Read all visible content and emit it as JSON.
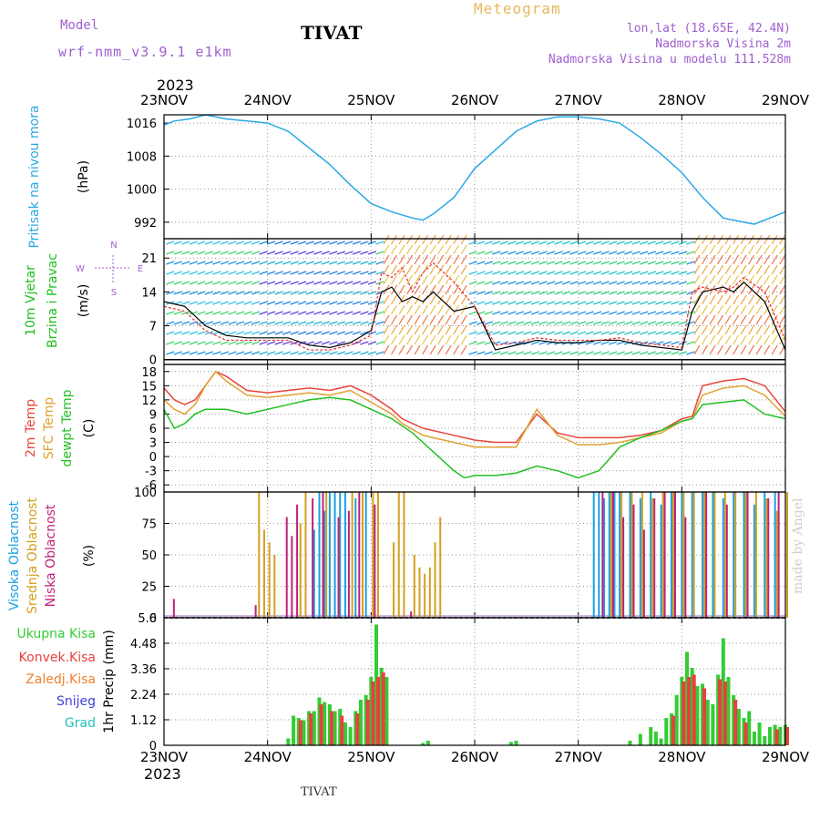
{
  "header": {
    "model_label": "Model",
    "model_name": "wrf-nmm_v3.9.1 e1km",
    "station": "TIVAT",
    "title": "Meteogram",
    "coords": "lon,lat (18.65E, 42.4N)",
    "elevation": "Nadmorska Visina 2m",
    "model_elevation": "Nadmorska Visina u modelu 111.528m",
    "year": "2023"
  },
  "footer": {
    "station": "TIVAT",
    "year": "2023",
    "credit": "made by Angel"
  },
  "colors": {
    "pressure": "#29a8e6",
    "wind_label": "#1fbf1f",
    "temp2m": "#e8453c",
    "sfctemp": "#e0a030",
    "dewpt": "#22c022",
    "cloud_high": "#1aa0e0",
    "cloud_mid": "#d4a020",
    "cloud_low": "#c0207a",
    "total_precip": "#33cc33",
    "conv_precip": "#e84040",
    "freezing": "#f08030",
    "snow": "#4040e0",
    "hail": "#20c0c0",
    "purple_text": "#a05fd0"
  },
  "chart_data": [
    {
      "type": "line",
      "id": "pressure",
      "ylabel": "Pritisak na nivou mora",
      "unit": "(hPa)",
      "x_ticks": [
        "23NOV",
        "24NOV",
        "25NOV",
        "26NOV",
        "27NOV",
        "28NOV",
        "29NOV"
      ],
      "y_ticks": [
        992,
        1000,
        1008,
        1016
      ],
      "ylim": [
        988,
        1018
      ],
      "grid": true,
      "x": [
        0,
        0.1,
        0.25,
        0.4,
        0.6,
        0.8,
        1,
        1.2,
        1.4,
        1.6,
        1.8,
        2,
        2.2,
        2.4,
        2.5,
        2.6,
        2.8,
        3,
        3.2,
        3.4,
        3.6,
        3.8,
        4,
        4.2,
        4.4,
        4.6,
        4.8,
        5,
        5.2,
        5.4,
        5.6,
        5.7,
        5.8,
        6
      ],
      "values": [
        1015.5,
        1016.5,
        1017,
        1018,
        1017,
        1016.5,
        1016,
        1014,
        1010,
        1006,
        1001,
        996.5,
        994.5,
        993,
        992.5,
        994,
        998,
        1005,
        1009.5,
        1014,
        1016.5,
        1017.5,
        1017.5,
        1017,
        1016,
        1012.5,
        1008.5,
        1004,
        998,
        993,
        992,
        991.5,
        992.5,
        994.5
      ]
    },
    {
      "type": "line",
      "id": "wind",
      "ylabel": [
        "10m Vjetar",
        "Brzina i Pravac"
      ],
      "unit": "(m/s)",
      "compass": "N, E, S, W",
      "y_ticks": [
        0,
        7,
        14,
        21
      ],
      "ylim": [
        -1,
        25
      ],
      "grid": true,
      "series": [
        {
          "name": "wind speed",
          "x": [
            0,
            0.2,
            0.4,
            0.6,
            0.8,
            1,
            1.2,
            1.4,
            1.6,
            1.8,
            2,
            2.1,
            2.2,
            2.3,
            2.4,
            2.5,
            2.6,
            2.8,
            3,
            3.2,
            3.4,
            3.6,
            3.8,
            4,
            4.2,
            4.4,
            4.6,
            4.8,
            5,
            5.1,
            5.2,
            5.4,
            5.5,
            5.6,
            5.8,
            6
          ],
          "values": [
            12,
            11,
            7,
            5,
            4.5,
            4.5,
            4.5,
            3,
            2.5,
            3.5,
            6,
            14,
            15,
            12,
            13,
            12,
            14,
            10,
            11,
            2,
            3,
            4,
            3.5,
            3.5,
            4,
            4,
            3,
            2.5,
            2,
            10,
            14,
            15,
            14,
            16,
            12,
            2
          ]
        },
        {
          "name": "gust",
          "x": [
            0,
            0.2,
            0.4,
            0.6,
            0.8,
            1,
            1.2,
            1.4,
            1.6,
            1.8,
            2,
            2.1,
            2.2,
            2.3,
            2.4,
            2.5,
            2.6,
            2.8,
            3,
            3.2,
            3.4,
            3.6,
            3.8,
            4,
            4.2,
            4.4,
            4.6,
            4.8,
            5,
            5.1,
            5.2,
            5.4,
            5.5,
            5.6,
            5.8,
            6
          ],
          "values": [
            11,
            10,
            6,
            4,
            4,
            4,
            4,
            2,
            2,
            3,
            5,
            18,
            17,
            19,
            14,
            18,
            20,
            16,
            11,
            3,
            3.5,
            4.5,
            4,
            4,
            4,
            4.5,
            3.5,
            3,
            2.5,
            14,
            15,
            14,
            15,
            17,
            14,
            4
          ]
        }
      ]
    },
    {
      "type": "line",
      "id": "temperature",
      "ylabel": [
        "2m Temp",
        "SFC Temp",
        "dewpt Temp"
      ],
      "unit": "(C)",
      "y_ticks": [
        -6,
        -3,
        0,
        3,
        6,
        9,
        12,
        15,
        18
      ],
      "ylim": [
        -7.5,
        19.5
      ],
      "grid": true,
      "series": [
        {
          "name": "2m Temp",
          "x": [
            0,
            0.1,
            0.2,
            0.3,
            0.4,
            0.5,
            0.6,
            0.8,
            1,
            1.2,
            1.4,
            1.6,
            1.8,
            2,
            2.2,
            2.3,
            2.5,
            2.7,
            2.9,
            3,
            3.2,
            3.4,
            3.6,
            3.8,
            4,
            4.2,
            4.4,
            4.6,
            4.8,
            5,
            5.1,
            5.2,
            5.4,
            5.6,
            5.8,
            6
          ],
          "values": [
            14.5,
            12,
            11,
            12,
            15,
            18,
            17,
            14,
            13.5,
            14,
            14.5,
            14,
            15,
            13,
            10,
            8,
            6,
            5,
            4,
            3.5,
            3,
            3,
            9,
            5,
            4,
            4,
            4,
            4.5,
            5.5,
            8,
            8.5,
            15,
            16,
            16.5,
            15,
            9.5
          ]
        },
        {
          "name": "SFC Temp",
          "x": [
            0,
            0.1,
            0.2,
            0.3,
            0.4,
            0.5,
            0.6,
            0.8,
            1,
            1.2,
            1.4,
            1.6,
            1.8,
            2,
            2.2,
            2.3,
            2.5,
            2.7,
            2.9,
            3,
            3.2,
            3.4,
            3.6,
            3.8,
            4,
            4.2,
            4.4,
            4.6,
            4.8,
            5,
            5.1,
            5.2,
            5.4,
            5.6,
            5.8,
            6
          ],
          "values": [
            12,
            10,
            9,
            11,
            15,
            18,
            16,
            13,
            12.5,
            13,
            13.5,
            13,
            14,
            11.5,
            9,
            7,
            4.5,
            3.5,
            2.5,
            2,
            2,
            2,
            10,
            4.5,
            2.5,
            2.5,
            3,
            4,
            5,
            7.5,
            8,
            13,
            14.5,
            15,
            13,
            8.5
          ]
        },
        {
          "name": "dewpt Temp",
          "x": [
            0,
            0.1,
            0.2,
            0.3,
            0.4,
            0.6,
            0.8,
            1,
            1.2,
            1.4,
            1.6,
            1.8,
            2,
            2.1,
            2.2,
            2.4,
            2.6,
            2.8,
            2.9,
            3,
            3.2,
            3.4,
            3.6,
            3.8,
            4,
            4.2,
            4.4,
            4.6,
            4.8,
            5,
            5.1,
            5.2,
            5.4,
            5.6,
            5.8,
            6
          ],
          "values": [
            10,
            6,
            7,
            9,
            10,
            10,
            9,
            10,
            11,
            12,
            12.5,
            12,
            10,
            9,
            8,
            5,
            1,
            -3,
            -4.5,
            -4,
            -4,
            -3.5,
            -2,
            -3,
            -4.5,
            -3,
            2,
            4,
            5.5,
            7.5,
            8,
            11,
            11.5,
            12,
            9,
            8
          ]
        }
      ]
    },
    {
      "type": "bar",
      "id": "clouds",
      "ylabel": [
        "Visoka Oblacnost",
        "Srednja Oblacnost",
        "Niska Oblacnost"
      ],
      "unit": "(%)",
      "y_ticks": [
        0,
        25,
        50,
        75,
        100
      ],
      "ylim": [
        0,
        100
      ],
      "grid": true,
      "series": [
        {
          "name": "Visoka Oblacnost",
          "x": [
            1.45,
            1.5,
            1.55,
            1.6,
            1.65,
            1.7,
            1.75,
            1.85,
            1.95,
            4.15,
            4.2,
            4.25,
            4.3,
            4.35,
            4.4,
            4.5,
            4.6,
            4.7,
            4.8,
            4.9,
            5,
            5.1,
            5.2,
            5.3,
            5.4,
            5.5,
            5.6,
            5.7,
            5.8,
            5.9
          ],
          "values": [
            70,
            100,
            85,
            100,
            100,
            100,
            100,
            95,
            100,
            100,
            100,
            95,
            100,
            100,
            100,
            100,
            95,
            100,
            90,
            100,
            100,
            100,
            100,
            100,
            95,
            100,
            100,
            90,
            100,
            100
          ]
        },
        {
          "name": "Srednja Oblacnost",
          "x": [
            0.9,
            0.95,
            1.0,
            1.05,
            1.3,
            1.35,
            1.55,
            1.8,
            1.9,
            2.0,
            2.05,
            2.2,
            2.25,
            2.3,
            2.4,
            2.45,
            2.5,
            2.55,
            2.6,
            2.65,
            4.3,
            4.4,
            4.5,
            4.6,
            4.7,
            4.8,
            4.9,
            5.0,
            5.1,
            5.2,
            5.3,
            5.4,
            5.5,
            5.6,
            5.7,
            5.8,
            5.9,
            6.0
          ],
          "values": [
            100,
            70,
            60,
            50,
            75,
            100,
            100,
            100,
            100,
            100,
            100,
            60,
            100,
            100,
            50,
            40,
            35,
            40,
            60,
            80,
            100,
            100,
            100,
            100,
            95,
            100,
            100,
            100,
            100,
            100,
            100,
            100,
            100,
            100,
            100,
            95,
            85,
            100
          ]
        },
        {
          "name": "Niska Oblacnost",
          "x": [
            0.06,
            0.85,
            1.15,
            1.2,
            1.25,
            1.4,
            1.5,
            1.65,
            1.75,
            1.85,
            2.0,
            2.35,
            4.2,
            4.3,
            4.4,
            4.5,
            4.6,
            4.7,
            4.8,
            4.9,
            5.0,
            5.2,
            5.4,
            5.6,
            5.8,
            5.9
          ],
          "values": [
            15,
            10,
            80,
            65,
            90,
            95,
            100,
            80,
            85,
            100,
            90,
            5,
            100,
            100,
            80,
            90,
            70,
            95,
            100,
            100,
            80,
            100,
            90,
            100,
            95,
            100
          ]
        }
      ]
    },
    {
      "type": "bar",
      "id": "precipitation",
      "ylabel": "1hr Precip",
      "unit": "(mm)",
      "legend": [
        "Ukupna Kisa",
        "Konvek.Kisa",
        "Zaledj.Kisa",
        "Snijeg",
        "Grad"
      ],
      "y_ticks": [
        0,
        1.12,
        2.24,
        3.36,
        4.48,
        5.6
      ],
      "ylim": [
        0,
        5.6
      ],
      "grid": true,
      "x_ticks": [
        "23NOV",
        "24NOV",
        "25NOV",
        "26NOV",
        "27NOV",
        "28NOV",
        "29NOV"
      ],
      "series": [
        {
          "name": "Ukupna Kisa",
          "x": [
            1.2,
            1.25,
            1.3,
            1.35,
            1.4,
            1.45,
            1.5,
            1.55,
            1.6,
            1.65,
            1.7,
            1.75,
            1.8,
            1.85,
            1.9,
            1.95,
            2.0,
            2.05,
            2.1,
            2.15,
            2.5,
            2.55,
            3.35,
            3.4,
            4.5,
            4.6,
            4.7,
            4.75,
            4.8,
            4.85,
            4.9,
            4.95,
            5.0,
            5.05,
            5.1,
            5.15,
            5.2,
            5.25,
            5.3,
            5.35,
            5.4,
            5.45,
            5.5,
            5.55,
            5.6,
            5.65,
            5.7,
            5.75,
            5.8,
            5.85,
            5.9,
            5.95,
            6.0
          ],
          "values": [
            0.3,
            1.3,
            1.2,
            1.1,
            1.5,
            1.5,
            2.1,
            1.9,
            1.8,
            1.5,
            1.6,
            1.0,
            0.8,
            1.5,
            2.0,
            2.2,
            3.0,
            5.3,
            3.4,
            3.0,
            0.1,
            0.2,
            0.15,
            0.2,
            0.2,
            0.5,
            0.8,
            0.6,
            0.3,
            1.2,
            1.4,
            2.2,
            3.0,
            4.1,
            3.4,
            2.6,
            2.7,
            2.0,
            1.8,
            3.1,
            4.7,
            3.0,
            2.2,
            1.6,
            1.2,
            1.5,
            0.6,
            1.0,
            0.4,
            0.8,
            0.9,
            0.8,
            0.9
          ]
        },
        {
          "name": "Konvek.Kisa",
          "x": [
            1.3,
            1.4,
            1.5,
            1.6,
            1.7,
            1.85,
            1.95,
            2.0,
            2.05,
            2.1,
            4.9,
            5.0,
            5.05,
            5.1,
            5.2,
            5.35,
            5.4,
            5.5,
            5.6,
            5.9,
            6.0
          ],
          "values": [
            1.1,
            1.4,
            1.8,
            1.5,
            1.3,
            1.4,
            2.0,
            2.8,
            3.0,
            3.2,
            1.3,
            2.8,
            3.0,
            3.1,
            2.5,
            2.9,
            2.8,
            2.0,
            1.0,
            0.7,
            0.8
          ]
        }
      ]
    }
  ]
}
